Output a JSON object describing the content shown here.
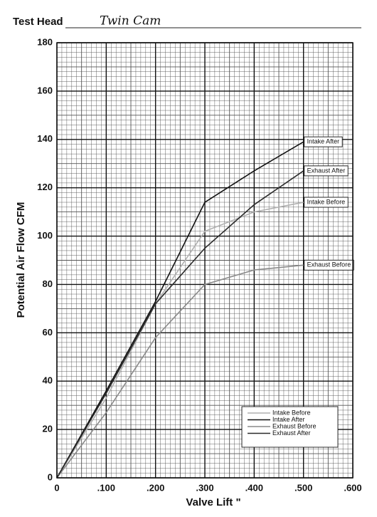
{
  "header": {
    "label": "Test Head",
    "value": "Twin Cam"
  },
  "chart_data": {
    "type": "line",
    "x_label": "Valve Lift \"",
    "y_label": "Potential Air Flow CFM",
    "x": [
      0,
      0.1,
      0.2,
      0.3,
      0.4,
      0.5
    ],
    "series": [
      {
        "name": "Intake Before",
        "color": "#b0b0b0",
        "values": [
          0,
          33,
          72,
          102,
          110,
          114
        ]
      },
      {
        "name": "Intake After",
        "color": "#111111",
        "values": [
          0,
          36,
          73,
          114,
          127,
          139
        ]
      },
      {
        "name": "Exhaust Before",
        "color": "#8a8a8a",
        "values": [
          0,
          27,
          58,
          80,
          86,
          88
        ]
      },
      {
        "name": "Exhaust After",
        "color": "#2a2a2a",
        "values": [
          0,
          35,
          72,
          95,
          113,
          127
        ]
      }
    ],
    "xlim": [
      0,
      0.6
    ],
    "ylim": [
      0,
      180
    ],
    "xticks": [
      0,
      {
        "value": 0.1,
        "label": ".100"
      },
      {
        "value": 0.2,
        "label": ".200"
      },
      {
        "value": 0.3,
        "label": ".300"
      },
      {
        "value": 0.4,
        "label": ".400"
      },
      {
        "value": 0.5,
        "label": ".500"
      },
      {
        "value": 0.6,
        "label": ".600"
      }
    ],
    "yticks": [
      0,
      20,
      40,
      60,
      80,
      100,
      120,
      140,
      160,
      180
    ],
    "grid": true
  }
}
